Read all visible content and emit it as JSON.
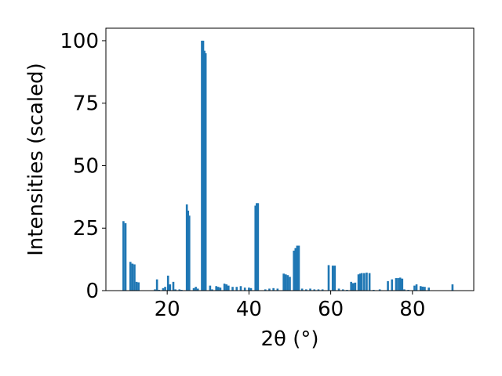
{
  "chart_data": {
    "type": "bar",
    "xlabel": "2θ (°)",
    "ylabel": "Intensities (scaled)",
    "xlim": [
      5,
      95
    ],
    "ylim": [
      0,
      105
    ],
    "x_ticks": [
      20,
      40,
      60,
      80
    ],
    "y_ticks": [
      0,
      25,
      50,
      75,
      100
    ],
    "grid": false,
    "bar_color": "#1f77b4",
    "bar_width": 0.5,
    "series": [
      {
        "x": [
          9.3,
          9.8,
          11.0,
          11.5,
          12.0,
          12.5,
          13.0,
          17.0,
          17.5,
          18.0,
          19.0,
          19.5,
          20.2,
          20.7,
          21.5,
          22.0,
          23.0,
          23.5,
          24.8,
          25.1,
          25.4,
          26.5,
          27.0,
          27.5,
          28.5,
          28.8,
          29.1,
          29.4,
          30.5,
          31.0,
          32.0,
          32.5,
          33.0,
          34.0,
          34.5,
          35.0,
          36.0,
          37.0,
          38.0,
          39.0,
          40.0,
          40.5,
          41.6,
          41.9,
          42.2,
          44.0,
          45.0,
          46.0,
          47.0,
          48.5,
          49.0,
          49.5,
          50.0,
          51.0,
          51.4,
          51.8,
          52.2,
          53.0,
          54.0,
          55.0,
          56.0,
          57.0,
          58.0,
          59.5,
          60.5,
          61.0,
          62.0,
          63.0,
          64.0,
          65.0,
          65.5,
          66.0,
          66.8,
          67.2,
          67.6,
          68.2,
          68.8,
          69.5,
          70.5,
          72.0,
          74.0,
          75.0,
          76.0,
          76.5,
          77.0,
          77.5,
          78.0,
          79.0,
          80.5,
          81.0,
          82.0,
          82.5,
          83.0,
          84.0,
          89.8
        ],
        "values": [
          27.8,
          27.0,
          11.5,
          10.8,
          10.5,
          3.5,
          3.3,
          0.5,
          4.5,
          0.3,
          1.0,
          1.5,
          6.0,
          2.5,
          3.5,
          0.5,
          0.5,
          0.3,
          34.5,
          32.0,
          30.0,
          1.0,
          1.5,
          0.8,
          100.0,
          100.0,
          96.0,
          95.0,
          2.0,
          0.5,
          1.8,
          1.5,
          1.2,
          2.8,
          2.5,
          2.0,
          1.5,
          1.5,
          1.8,
          1.2,
          1.2,
          1.0,
          34.0,
          35.0,
          35.0,
          0.5,
          0.8,
          1.0,
          0.8,
          6.8,
          6.5,
          6.2,
          5.5,
          16.0,
          17.0,
          18.0,
          18.0,
          0.8,
          0.5,
          0.8,
          0.5,
          0.5,
          0.5,
          10.2,
          10.0,
          10.0,
          0.8,
          0.5,
          0.3,
          3.5,
          3.0,
          3.2,
          6.5,
          6.8,
          7.0,
          7.0,
          7.2,
          7.0,
          0.3,
          0.5,
          3.8,
          4.5,
          5.0,
          5.0,
          5.2,
          4.8,
          0.5,
          0.3,
          2.0,
          2.5,
          1.8,
          1.6,
          1.5,
          1.2,
          2.5
        ]
      }
    ]
  }
}
